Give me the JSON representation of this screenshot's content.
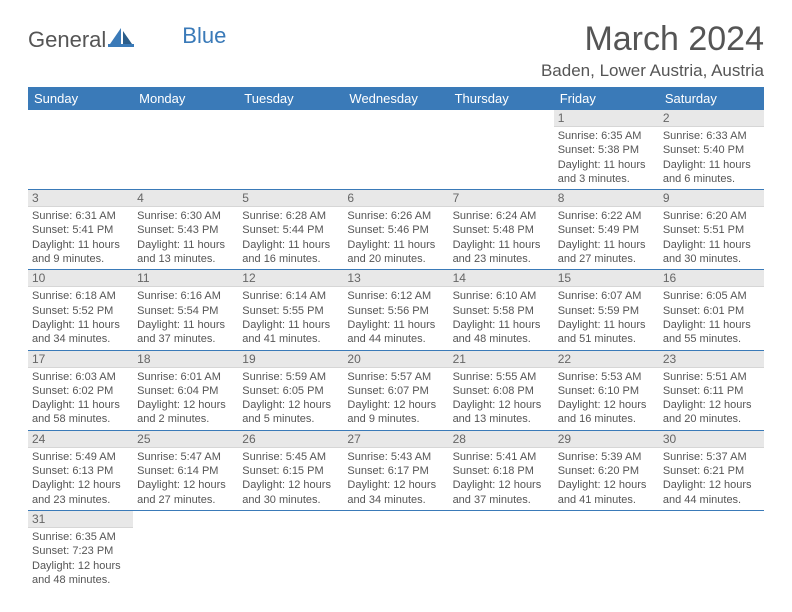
{
  "logo": {
    "part1": "General",
    "part2": "Blue"
  },
  "title": "March 2024",
  "subtitle": "Baden, Lower Austria, Austria",
  "colors": {
    "header_bg": "#3a7ab8",
    "header_fg": "#ffffff",
    "daynum_bg": "#e8e8e8",
    "row_border": "#3a7ab8",
    "text": "#555555"
  },
  "weekdays": [
    "Sunday",
    "Monday",
    "Tuesday",
    "Wednesday",
    "Thursday",
    "Friday",
    "Saturday"
  ],
  "weeks": [
    [
      null,
      null,
      null,
      null,
      null,
      {
        "n": "1",
        "sr": "6:35 AM",
        "ss": "5:38 PM",
        "dl": "11 hours and 3 minutes."
      },
      {
        "n": "2",
        "sr": "6:33 AM",
        "ss": "5:40 PM",
        "dl": "11 hours and 6 minutes."
      }
    ],
    [
      {
        "n": "3",
        "sr": "6:31 AM",
        "ss": "5:41 PM",
        "dl": "11 hours and 9 minutes."
      },
      {
        "n": "4",
        "sr": "6:30 AM",
        "ss": "5:43 PM",
        "dl": "11 hours and 13 minutes."
      },
      {
        "n": "5",
        "sr": "6:28 AM",
        "ss": "5:44 PM",
        "dl": "11 hours and 16 minutes."
      },
      {
        "n": "6",
        "sr": "6:26 AM",
        "ss": "5:46 PM",
        "dl": "11 hours and 20 minutes."
      },
      {
        "n": "7",
        "sr": "6:24 AM",
        "ss": "5:48 PM",
        "dl": "11 hours and 23 minutes."
      },
      {
        "n": "8",
        "sr": "6:22 AM",
        "ss": "5:49 PM",
        "dl": "11 hours and 27 minutes."
      },
      {
        "n": "9",
        "sr": "6:20 AM",
        "ss": "5:51 PM",
        "dl": "11 hours and 30 minutes."
      }
    ],
    [
      {
        "n": "10",
        "sr": "6:18 AM",
        "ss": "5:52 PM",
        "dl": "11 hours and 34 minutes."
      },
      {
        "n": "11",
        "sr": "6:16 AM",
        "ss": "5:54 PM",
        "dl": "11 hours and 37 minutes."
      },
      {
        "n": "12",
        "sr": "6:14 AM",
        "ss": "5:55 PM",
        "dl": "11 hours and 41 minutes."
      },
      {
        "n": "13",
        "sr": "6:12 AM",
        "ss": "5:56 PM",
        "dl": "11 hours and 44 minutes."
      },
      {
        "n": "14",
        "sr": "6:10 AM",
        "ss": "5:58 PM",
        "dl": "11 hours and 48 minutes."
      },
      {
        "n": "15",
        "sr": "6:07 AM",
        "ss": "5:59 PM",
        "dl": "11 hours and 51 minutes."
      },
      {
        "n": "16",
        "sr": "6:05 AM",
        "ss": "6:01 PM",
        "dl": "11 hours and 55 minutes."
      }
    ],
    [
      {
        "n": "17",
        "sr": "6:03 AM",
        "ss": "6:02 PM",
        "dl": "11 hours and 58 minutes."
      },
      {
        "n": "18",
        "sr": "6:01 AM",
        "ss": "6:04 PM",
        "dl": "12 hours and 2 minutes."
      },
      {
        "n": "19",
        "sr": "5:59 AM",
        "ss": "6:05 PM",
        "dl": "12 hours and 5 minutes."
      },
      {
        "n": "20",
        "sr": "5:57 AM",
        "ss": "6:07 PM",
        "dl": "12 hours and 9 minutes."
      },
      {
        "n": "21",
        "sr": "5:55 AM",
        "ss": "6:08 PM",
        "dl": "12 hours and 13 minutes."
      },
      {
        "n": "22",
        "sr": "5:53 AM",
        "ss": "6:10 PM",
        "dl": "12 hours and 16 minutes."
      },
      {
        "n": "23",
        "sr": "5:51 AM",
        "ss": "6:11 PM",
        "dl": "12 hours and 20 minutes."
      }
    ],
    [
      {
        "n": "24",
        "sr": "5:49 AM",
        "ss": "6:13 PM",
        "dl": "12 hours and 23 minutes."
      },
      {
        "n": "25",
        "sr": "5:47 AM",
        "ss": "6:14 PM",
        "dl": "12 hours and 27 minutes."
      },
      {
        "n": "26",
        "sr": "5:45 AM",
        "ss": "6:15 PM",
        "dl": "12 hours and 30 minutes."
      },
      {
        "n": "27",
        "sr": "5:43 AM",
        "ss": "6:17 PM",
        "dl": "12 hours and 34 minutes."
      },
      {
        "n": "28",
        "sr": "5:41 AM",
        "ss": "6:18 PM",
        "dl": "12 hours and 37 minutes."
      },
      {
        "n": "29",
        "sr": "5:39 AM",
        "ss": "6:20 PM",
        "dl": "12 hours and 41 minutes."
      },
      {
        "n": "30",
        "sr": "5:37 AM",
        "ss": "6:21 PM",
        "dl": "12 hours and 44 minutes."
      }
    ],
    [
      {
        "n": "31",
        "sr": "6:35 AM",
        "ss": "7:23 PM",
        "dl": "12 hours and 48 minutes."
      },
      null,
      null,
      null,
      null,
      null,
      null
    ]
  ],
  "labels": {
    "sunrise": "Sunrise:",
    "sunset": "Sunset:",
    "daylight": "Daylight:"
  }
}
